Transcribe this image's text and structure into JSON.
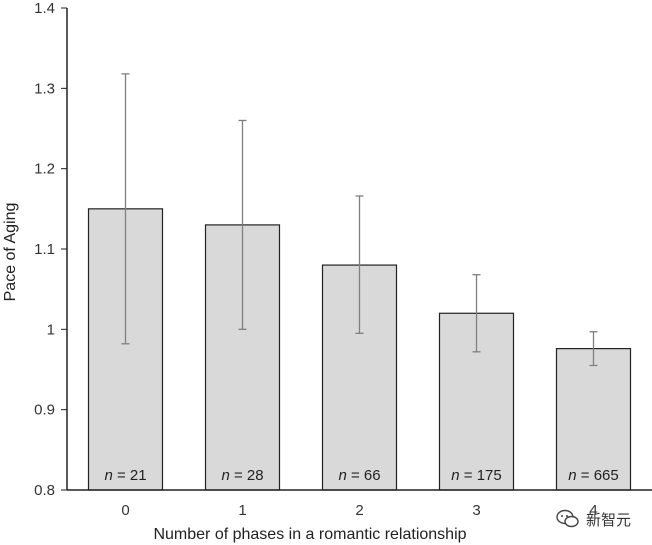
{
  "chart_data": {
    "type": "bar",
    "title": "",
    "xlabel": "Number of phases in a romantic relationship",
    "ylabel": "Pace of Aging",
    "categories": [
      "0",
      "1",
      "2",
      "3",
      "4"
    ],
    "values": [
      1.15,
      1.13,
      1.08,
      1.02,
      0.976
    ],
    "error_low": [
      0.982,
      1.0,
      0.995,
      0.972,
      0.955
    ],
    "error_high": [
      1.318,
      1.26,
      1.166,
      1.068,
      0.997
    ],
    "bar_labels": [
      {
        "prefix": "n",
        "text": " = 21"
      },
      {
        "prefix": "n",
        "text": " = 28"
      },
      {
        "prefix": "n",
        "text": " = 66"
      },
      {
        "prefix": "n",
        "text": " = 175"
      },
      {
        "prefix": "n",
        "text": " = 665"
      }
    ],
    "ylim": [
      0.8,
      1.4
    ],
    "yticks": [
      "0.8",
      "0.9",
      "1",
      "1.1",
      "1.2",
      "1.3",
      "1.4"
    ],
    "grid": false,
    "legend": "none",
    "colors": {
      "bar_fill": "#d9d9d9",
      "bar_stroke": "#222222",
      "error_bar": "#7f7f7f",
      "axis": "#222222"
    }
  },
  "watermark": {
    "text": "新智元",
    "icon": "wechat-icon"
  }
}
